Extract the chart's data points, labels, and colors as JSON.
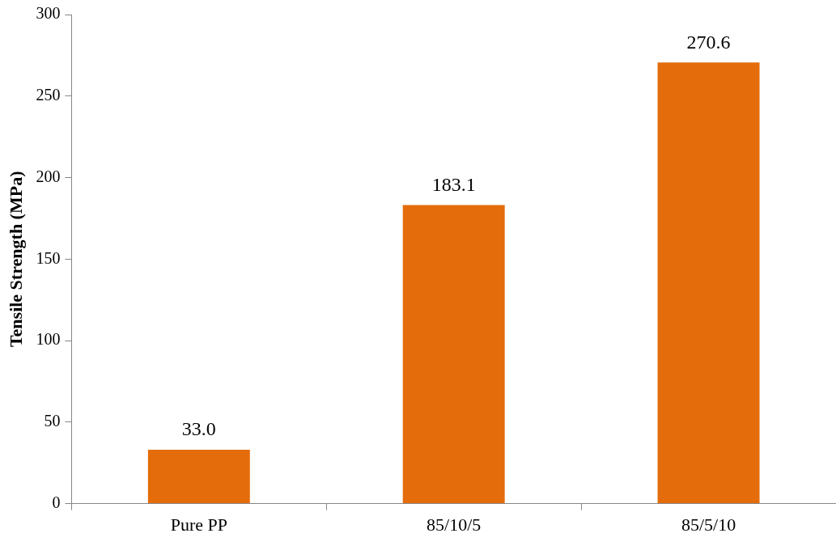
{
  "chart_data": {
    "type": "bar",
    "ylabel": "Tensile Strength (MPa)",
    "categories": [
      "Pure PP",
      "85/10/5",
      "85/5/10"
    ],
    "values": [
      33.0,
      183.1,
      270.6
    ],
    "value_labels": [
      "33.0",
      "183.1",
      "270.6"
    ],
    "color": "#e46c0a",
    "ylim": [
      0,
      300
    ],
    "yticks": [
      0,
      50,
      100,
      150,
      200,
      250,
      300
    ],
    "grid": false,
    "legend": false
  }
}
